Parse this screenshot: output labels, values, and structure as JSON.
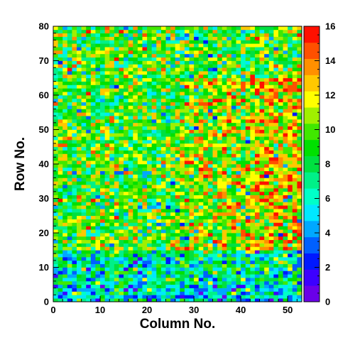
{
  "chart_data": {
    "type": "heatmap",
    "title": "",
    "xlabel": "Column No.",
    "ylabel": "Row No.",
    "xlim": [
      0,
      53
    ],
    "ylim": [
      0,
      80
    ],
    "zlim": [
      0,
      16
    ],
    "n_columns": 53,
    "n_rows": 80,
    "x_ticks": [
      0,
      10,
      20,
      30,
      40,
      50
    ],
    "y_ticks": [
      0,
      10,
      20,
      30,
      40,
      50,
      60,
      70,
      80
    ],
    "z_ticks": [
      0,
      2,
      4,
      6,
      8,
      10,
      12,
      14,
      16
    ],
    "colorbar": true,
    "colorbar_location": "right",
    "grid": false,
    "palette": [
      "#6a00e8",
      "#3c00ff",
      "#0018ff",
      "#0060ff",
      "#00a8ff",
      "#00e8ff",
      "#00ffc8",
      "#00f088",
      "#00e040",
      "#00e000",
      "#40e800",
      "#a0f000",
      "#ffff00",
      "#ffc800",
      "#ff9000",
      "#ff5000",
      "#ff1000"
    ],
    "background_level_by_row_band": [
      {
        "rows": [
          0,
          5
        ],
        "mean": 5.5,
        "note_level": "low"
      },
      {
        "rows": [
          5,
          15
        ],
        "mean": 7,
        "note_level": "mixed"
      },
      {
        "rows": [
          15,
          80
        ],
        "mean": 9.5,
        "note_level": "medium"
      }
    ],
    "hot_region": {
      "column_range": [
        26,
        53
      ],
      "row_range": [
        15,
        65
      ],
      "peak_mean": 12.5
    }
  }
}
